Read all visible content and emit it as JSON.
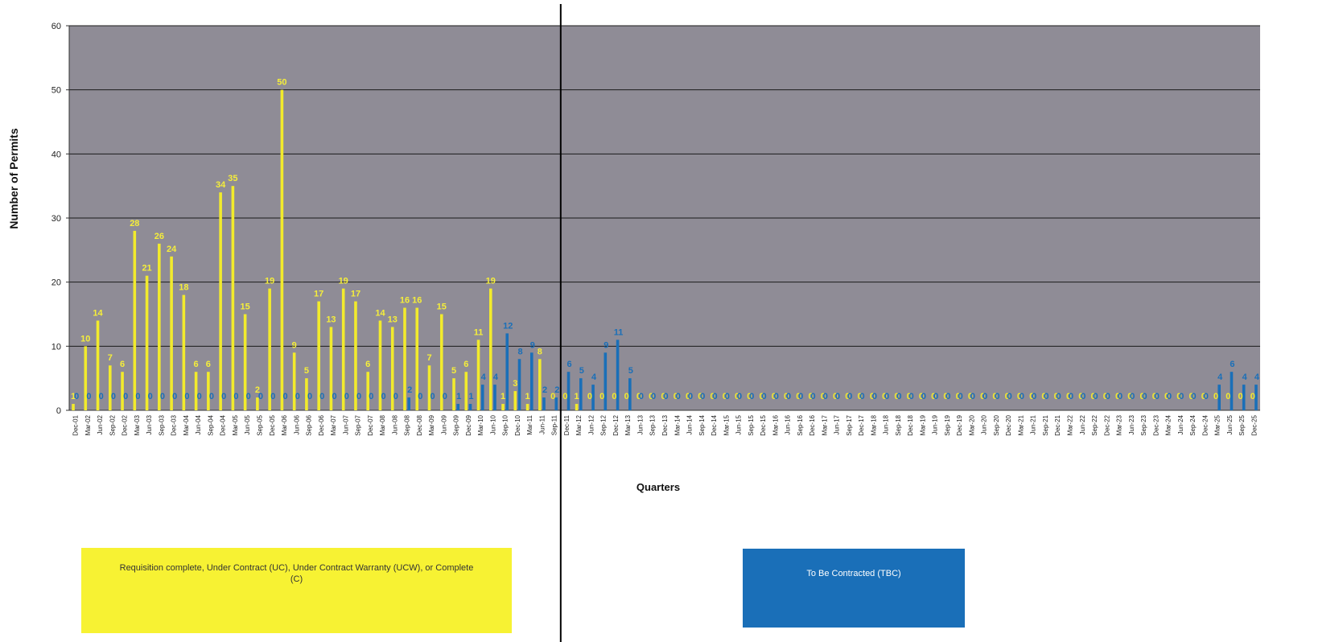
{
  "chart_data": {
    "type": "bar",
    "ylabel": "Number of Permits",
    "xlabel": "Quarters",
    "ylim": [
      0,
      60
    ],
    "yticks": [
      0,
      10,
      20,
      30,
      40,
      50,
      60
    ],
    "grid": true,
    "colors": {
      "plot_background": "#8f8c96",
      "gridline": "#1a1a1a",
      "complete": "#f2eb2c",
      "complete_label": "#f5ee3a",
      "tbc": "#1a6fb8",
      "tbc_label": "#1a6fb8",
      "zero_label_on_plot": "#f2eb2c"
    },
    "categories": [
      "Dec-01",
      "Mar-02",
      "Jun-02",
      "Sep-02",
      "Dec-02",
      "Mar-03",
      "Jun-03",
      "Sep-03",
      "Dec-03",
      "Mar-04",
      "Jun-04",
      "Sep-04",
      "Dec-04",
      "Mar-05",
      "Jun-05",
      "Sep-05",
      "Dec-05",
      "Mar-06",
      "Jun-06",
      "Sep-06",
      "Dec-06",
      "Mar-07",
      "Jun-07",
      "Sep-07",
      "Dec-07",
      "Mar-08",
      "Jun-08",
      "Sep-08",
      "Dec-08",
      "Mar-09",
      "Jun-09",
      "Sep-09",
      "Dec-09",
      "Mar-10",
      "Jun-10",
      "Sep-10",
      "Dec-10",
      "Mar-11",
      "Jun-11",
      "Sep-11",
      "Dec-11",
      "Mar-12",
      "Jun-12",
      "Sep-12",
      "Dec-12",
      "Mar-13",
      "Jun-13",
      "Sep-13",
      "Dec-13",
      "Mar-14",
      "Jun-14",
      "Sep-14",
      "Dec-14",
      "Mar-15",
      "Jun-15",
      "Sep-15",
      "Dec-15",
      "Mar-16",
      "Jun-16",
      "Sep-16",
      "Dec-16",
      "Mar-17",
      "Jun-17",
      "Sep-17",
      "Dec-17",
      "Mar-18",
      "Jun-18",
      "Sep-18",
      "Dec-18",
      "Mar-19",
      "Jun-19",
      "Sep-19",
      "Dec-19",
      "Mar-20",
      "Jun-20",
      "Sep-20",
      "Dec-20",
      "Mar-21",
      "Jun-21",
      "Sep-21",
      "Dec-21",
      "Mar-22",
      "Jun-22",
      "Sep-22",
      "Dec-22",
      "Mar-23",
      "Jun-23",
      "Sep-23",
      "Dec-23",
      "Mar-24",
      "Jun-24",
      "Sep-24",
      "Dec-24",
      "Mar-25",
      "Jun-25",
      "Sep-25",
      "Dec-25"
    ],
    "series": [
      {
        "name": "Requisition complete, Under Contract (UC), Under Contract Warranty (UCW), or Complete (C)",
        "values": [
          1,
          10,
          14,
          7,
          6,
          28,
          21,
          26,
          24,
          18,
          6,
          6,
          34,
          35,
          15,
          2,
          19,
          50,
          9,
          5,
          17,
          13,
          19,
          17,
          6,
          14,
          13,
          16,
          16,
          7,
          15,
          5,
          6,
          11,
          19,
          1,
          3,
          1,
          8,
          0,
          0,
          1,
          0,
          0,
          0,
          0,
          0,
          0,
          0,
          0,
          0,
          0,
          0,
          0,
          0,
          0,
          0,
          0,
          0,
          0,
          0,
          0,
          0,
          0,
          0,
          0,
          0,
          0,
          0,
          0,
          0,
          0,
          0,
          0,
          0,
          0,
          0,
          0,
          0,
          0,
          0,
          0,
          0,
          0,
          0,
          0,
          0,
          0,
          0,
          0,
          0,
          0,
          0,
          0,
          0,
          0,
          0
        ]
      },
      {
        "name": "To Be Contracted (TBC)",
        "values": [
          0,
          0,
          0,
          0,
          0,
          0,
          0,
          0,
          0,
          0,
          0,
          0,
          0,
          0,
          0,
          0,
          0,
          0,
          0,
          0,
          0,
          0,
          0,
          0,
          0,
          0,
          0,
          2,
          0,
          0,
          0,
          1,
          1,
          4,
          4,
          12,
          8,
          9,
          2,
          2,
          6,
          5,
          4,
          9,
          11,
          5,
          0,
          0,
          0,
          0,
          0,
          0,
          0,
          0,
          0,
          0,
          0,
          0,
          0,
          0,
          0,
          0,
          0,
          0,
          0,
          0,
          0,
          0,
          0,
          0,
          0,
          0,
          0,
          0,
          0,
          0,
          0,
          0,
          0,
          0,
          0,
          0,
          0,
          0,
          0,
          0,
          0,
          0,
          0,
          0,
          0,
          0,
          0,
          4,
          6,
          4,
          4
        ]
      }
    ],
    "legend": {
      "placement": "bottom",
      "items": [
        {
          "label": "Requisition complete, Under Contract (UC), Under Contract Warranty (UCW), or Complete (C)",
          "color": "#f7f233"
        },
        {
          "label": "To Be Contracted (TBC)",
          "color": "#1a6fb8"
        }
      ]
    },
    "annotations": {
      "divider_after": "Sep-11"
    }
  }
}
